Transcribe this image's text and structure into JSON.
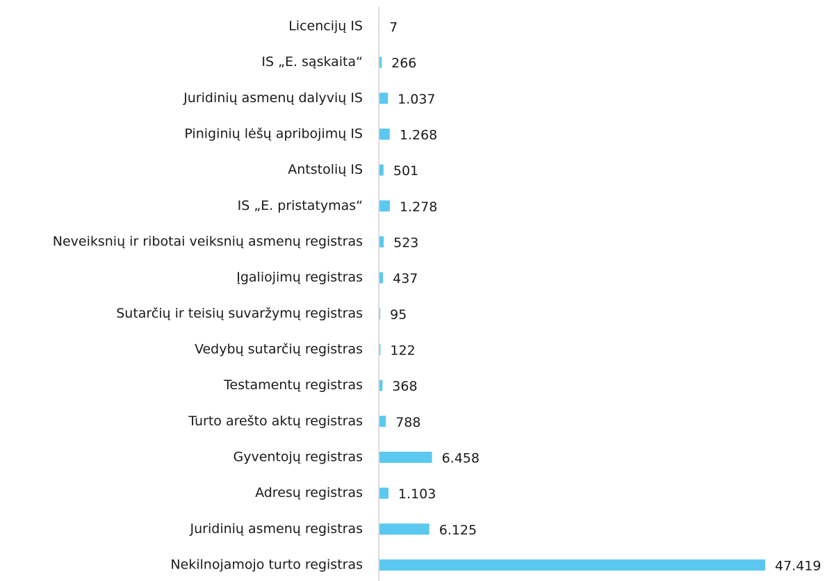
{
  "chart_data": {
    "type": "bar",
    "orientation": "horizontal",
    "categories": [
      "Licencijų IS",
      "IS „E. sąskaita“",
      "Juridinių asmenų dalyvių IS",
      "Piniginių lėšų apribojimų IS",
      "Antstolių IS",
      "IS „E. pristatymas“",
      "Neveiksnių ir ribotai veiksnių asmenų registras",
      "Įgaliojimų registras",
      "Sutarčių ir teisių suvaržymų registras",
      "Vedybų sutarčių registras",
      "Testamentų registras",
      "Turto arešto aktų registras",
      "Gyventojų registras",
      "Adresų registras",
      "Juridinių asmenų registras",
      "Nekilnojamojo turto registras"
    ],
    "values": [
      7,
      266,
      1037,
      1268,
      501,
      1278,
      523,
      437,
      95,
      122,
      368,
      788,
      6458,
      1103,
      6125,
      47419
    ],
    "value_labels": [
      "7",
      "266",
      "1.037",
      "1.268",
      "501",
      "1.278",
      "523",
      "437",
      "95",
      "122",
      "368",
      "788",
      "6.458",
      "1.103",
      "6.125",
      "47.419"
    ],
    "color": "#5bc8f0"
  }
}
